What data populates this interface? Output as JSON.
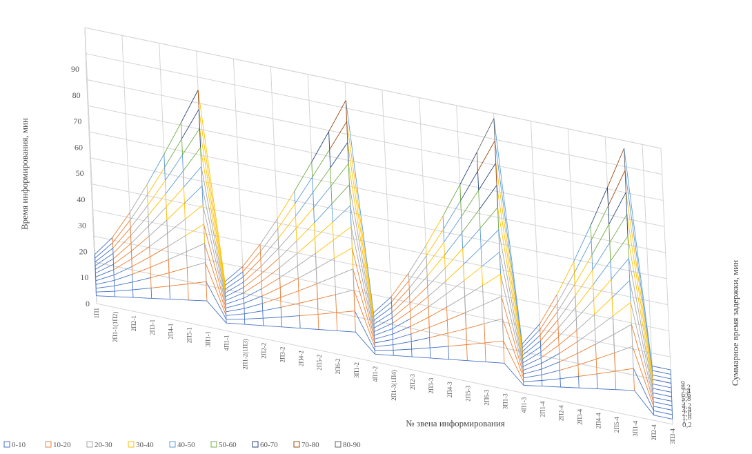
{
  "chart_data": {
    "type": "surface-3d-wireframe",
    "zlabel": "Время информирования, мин",
    "xlabel": "№ звена информирования",
    "ylabel": "Суммарное время задержки, мин",
    "zlim": [
      0,
      90
    ],
    "z_ticks": [
      "0",
      "10",
      "20",
      "30",
      "40",
      "50",
      "60",
      "70",
      "80",
      "90"
    ],
    "x_categories": [
      "1П1",
      "2П1-1(1П2)",
      "2П2-1",
      "2П3-1",
      "2П4-1",
      "2П5-1",
      "3П1-1",
      "4П1-1",
      "2П1-2(1П3)",
      "2П2-2",
      "2П3-2",
      "2П4-2",
      "2П5-2",
      "2П6-2",
      "3П1-2",
      "4П1-2",
      "2П1-3(1П4)",
      "2П2-3",
      "2П3-3",
      "2П4-3",
      "2П5-3",
      "2П6-3",
      "3П1-3",
      "4П1-3",
      "2П1-4",
      "2П2-4",
      "2П3-4",
      "2П4-4",
      "2П5-4",
      "3П1-4",
      "2П2-4",
      "3П3-4"
    ],
    "y_ticks": [
      "0,2",
      "1",
      "1,8",
      "2,6",
      "3,4",
      "4,2",
      "5",
      "5,8",
      "6,6",
      "7,4",
      "8,2",
      "9"
    ],
    "legend": [
      {
        "label": "0-10",
        "color": "#4472c4"
      },
      {
        "label": "10-20",
        "color": "#ed7d31"
      },
      {
        "label": "20-30",
        "color": "#a5a5a5"
      },
      {
        "label": "30-40",
        "color": "#ffc000"
      },
      {
        "label": "40-50",
        "color": "#5b9bd5"
      },
      {
        "label": "50-60",
        "color": "#70ad47"
      },
      {
        "label": "60-70",
        "color": "#264478"
      },
      {
        "label": "70-80",
        "color": "#9e480e"
      },
      {
        "label": "80-90",
        "color": "#636363"
      }
    ],
    "legend_position": "bottom-left",
    "grid": true,
    "peaks": [
      {
        "x_index": 6,
        "z_max": 75
      },
      {
        "x_index": 14,
        "z_max": 83
      },
      {
        "x_index": 22,
        "z_max": 88
      },
      {
        "x_index": 29,
        "z_max": 87
      }
    ],
    "surface_rule": "z(x,y) = y × time-to-peak weight; rises from 0 at x=1П1 to the peak for each group, drops at the first link of the next group"
  }
}
